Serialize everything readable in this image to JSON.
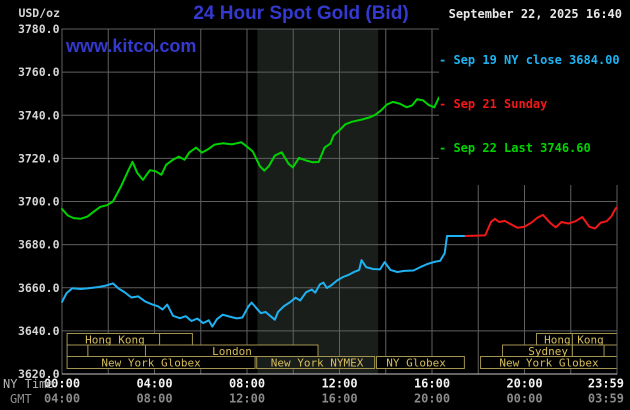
{
  "header": {
    "unit_label": "USD/oz",
    "title": "24 Hour Spot Gold (Bid)",
    "datetime": "September 22, 2025 16:40",
    "watermark": "www.kitco.com"
  },
  "legend": {
    "items": [
      {
        "label": "- Sep 19 NY close 3684.00",
        "color": "#1fb2f2"
      },
      {
        "label": "- Sep 21 Sunday",
        "color": "#f01818"
      },
      {
        "label": "- Sep 22 Last 3746.60",
        "color": "#00d400"
      }
    ]
  },
  "axes": {
    "y": {
      "ticks": [
        {
          "value": 3780,
          "label": "3780.0"
        },
        {
          "value": 3760,
          "label": "3760.0"
        },
        {
          "value": 3740,
          "label": "3740.0"
        },
        {
          "value": 3720,
          "label": "3720.0"
        },
        {
          "value": 3700,
          "label": "3700.0"
        },
        {
          "value": 3680,
          "label": "3680.0"
        },
        {
          "value": 3660,
          "label": "3660.0"
        },
        {
          "value": 3640,
          "label": "3640.0"
        },
        {
          "value": 3620,
          "label": "3620.0"
        }
      ]
    },
    "time_rows": [
      {
        "label": "NY Time",
        "color": "#f2f2f2",
        "ticks": [
          {
            "hour": 0,
            "text": "00:00"
          },
          {
            "hour": 4,
            "text": "04:00"
          },
          {
            "hour": 8,
            "text": "08:00"
          },
          {
            "hour": 12,
            "text": "12:00"
          },
          {
            "hour": 16,
            "text": "16:00"
          },
          {
            "hour": 20,
            "text": "20:00"
          },
          {
            "hour": 23.98,
            "text": "23:59",
            "align": "end"
          }
        ]
      },
      {
        "label": "GMT",
        "color": "#8a8a8a",
        "ticks": [
          {
            "hour": 0,
            "text": "04:00"
          },
          {
            "hour": 4,
            "text": "08:00"
          },
          {
            "hour": 8,
            "text": "12:00"
          },
          {
            "hour": 12,
            "text": "16:00"
          },
          {
            "hour": 16,
            "text": "20:00"
          },
          {
            "hour": 20,
            "text": "00:00"
          },
          {
            "hour": 23.98,
            "text": "03:59",
            "align": "end"
          }
        ]
      }
    ]
  },
  "sessions": {
    "border_color": "#a3954f",
    "text_color": "#d6bd5a",
    "rows": [
      {
        "boxes": [
          {
            "from": 0.22,
            "to": 4.22
          },
          {
            "from": 4.22,
            "to": 5.64
          },
          {
            "from": 20.52,
            "to": 22.07
          },
          {
            "from": 22.07,
            "to": 24
          }
        ],
        "labels": [
          {
            "hour": 2.29,
            "text": "Hong Kong"
          },
          {
            "hour": 22.14,
            "text": "Hong Kong"
          }
        ]
      },
      {
        "boxes": [
          {
            "from": 0.22,
            "to": 1.12
          },
          {
            "from": 1.12,
            "to": 3.61
          },
          {
            "from": 3.61,
            "to": 11.07
          },
          {
            "from": 19.05,
            "to": 22.07
          },
          {
            "from": 22.07,
            "to": 23.44
          }
        ],
        "labels": [
          {
            "hour": 7.35,
            "text": "London"
          },
          {
            "hour": 21.02,
            "text": "Sydney"
          }
        ]
      },
      {
        "boxes": [
          {
            "from": 0.22,
            "to": 8.35
          },
          {
            "from": 8.42,
            "to": 13.52,
            "shaded": true
          },
          {
            "from": 13.6,
            "to": 17.4
          },
          {
            "from": 18.1,
            "to": 24
          }
        ],
        "labels": [
          {
            "hour": 3.85,
            "text": "New York Globex"
          },
          {
            "hour": 11.03,
            "text": "New York NYMEX"
          },
          {
            "hour": 15.31,
            "text": "NY Globex"
          },
          {
            "hour": 21.06,
            "text": "New York Globex"
          }
        ]
      }
    ]
  },
  "chart_data": {
    "type": "line",
    "title": "24 Hour Spot Gold (Bid)",
    "xlabel": "NY Time (hours)",
    "ylabel": "USD/oz",
    "x_range": [
      0,
      24
    ],
    "y_range": [
      3620,
      3780
    ],
    "grid": {
      "x_step_hours": 2,
      "y_step": 20,
      "color": "#5f5f5f"
    },
    "band": {
      "from": 8.45,
      "to": 13.67,
      "color": "#1a1e1a"
    },
    "series": [
      {
        "name": "Sep 19 NY close 3684.00",
        "color": "#1fb2f2",
        "points": [
          [
            0,
            3653.5
          ],
          [
            0.2,
            3657.5
          ],
          [
            0.45,
            3659.8
          ],
          [
            0.8,
            3659.4
          ],
          [
            1.1,
            3659.7
          ],
          [
            1.5,
            3660.2
          ],
          [
            1.9,
            3661
          ],
          [
            2.2,
            3662
          ],
          [
            2.45,
            3659.6
          ],
          [
            2.7,
            3658
          ],
          [
            3.0,
            3655.5
          ],
          [
            3.3,
            3656
          ],
          [
            3.6,
            3653.6
          ],
          [
            3.9,
            3652.3
          ],
          [
            4.15,
            3651.4
          ],
          [
            4.35,
            3649.9
          ],
          [
            4.55,
            3652.2
          ],
          [
            4.8,
            3647
          ],
          [
            5.1,
            3645.9
          ],
          [
            5.35,
            3646.8
          ],
          [
            5.6,
            3644.6
          ],
          [
            5.85,
            3645.7
          ],
          [
            6.1,
            3643.6
          ],
          [
            6.35,
            3644.9
          ],
          [
            6.5,
            3642
          ],
          [
            6.7,
            3645.4
          ],
          [
            6.95,
            3647.5
          ],
          [
            7.25,
            3646.6
          ],
          [
            7.55,
            3645.8
          ],
          [
            7.8,
            3646.2
          ],
          [
            8.05,
            3651.2
          ],
          [
            8.2,
            3653.1
          ],
          [
            8.45,
            3650
          ],
          [
            8.6,
            3648.2
          ],
          [
            8.8,
            3648.8
          ],
          [
            9.0,
            3647
          ],
          [
            9.2,
            3645.2
          ],
          [
            9.35,
            3648.9
          ],
          [
            9.6,
            3651.5
          ],
          [
            9.85,
            3653.2
          ],
          [
            10.1,
            3655.4
          ],
          [
            10.3,
            3654.1
          ],
          [
            10.55,
            3657.9
          ],
          [
            10.8,
            3659.2
          ],
          [
            10.95,
            3657.7
          ],
          [
            11.15,
            3661.5
          ],
          [
            11.3,
            3662.4
          ],
          [
            11.45,
            3659.9
          ],
          [
            11.65,
            3661.2
          ],
          [
            11.9,
            3663.4
          ],
          [
            12.15,
            3665
          ],
          [
            12.4,
            3666
          ],
          [
            12.65,
            3667.4
          ],
          [
            12.85,
            3668.3
          ],
          [
            12.95,
            3672.8
          ],
          [
            13.15,
            3669.6
          ],
          [
            13.45,
            3668.7
          ],
          [
            13.75,
            3668.5
          ],
          [
            13.95,
            3671.9
          ],
          [
            14.2,
            3668.3
          ],
          [
            14.5,
            3667.3
          ],
          [
            14.8,
            3667.8
          ],
          [
            15.2,
            3668
          ],
          [
            15.5,
            3669.6
          ],
          [
            15.8,
            3671
          ],
          [
            16.1,
            3672
          ],
          [
            16.35,
            3672.5
          ],
          [
            16.55,
            3676
          ],
          [
            16.65,
            3684
          ],
          [
            17.45,
            3684
          ]
        ]
      },
      {
        "name": "Sep 21 Sunday",
        "color": "#f01818",
        "points": [
          [
            17.45,
            3684
          ],
          [
            18.3,
            3684.3
          ],
          [
            18.55,
            3690.5
          ],
          [
            18.72,
            3692
          ],
          [
            18.9,
            3690.5
          ],
          [
            19.15,
            3691
          ],
          [
            19.45,
            3689.2
          ],
          [
            19.7,
            3687.8
          ],
          [
            20.0,
            3688.3
          ],
          [
            20.3,
            3690.2
          ],
          [
            20.55,
            3692.4
          ],
          [
            20.8,
            3693.8
          ],
          [
            21.1,
            3690.2
          ],
          [
            21.35,
            3688
          ],
          [
            21.6,
            3690.5
          ],
          [
            21.9,
            3689.8
          ],
          [
            22.2,
            3690.8
          ],
          [
            22.5,
            3692.8
          ],
          [
            22.8,
            3688.3
          ],
          [
            23.05,
            3687.5
          ],
          [
            23.3,
            3690.2
          ],
          [
            23.55,
            3690.8
          ],
          [
            23.75,
            3693
          ],
          [
            23.9,
            3696
          ],
          [
            23.98,
            3697.2
          ]
        ]
      },
      {
        "name": "Sep 22 Last 3746.60",
        "color": "#00d400",
        "points": [
          [
            0,
            3696.5
          ],
          [
            0.25,
            3693.5
          ],
          [
            0.5,
            3692.3
          ],
          [
            0.8,
            3692
          ],
          [
            1.1,
            3693
          ],
          [
            1.4,
            3695.5
          ],
          [
            1.65,
            3697.5
          ],
          [
            1.95,
            3698.3
          ],
          [
            2.2,
            3700
          ],
          [
            2.55,
            3707
          ],
          [
            2.85,
            3714
          ],
          [
            3.05,
            3718.4
          ],
          [
            3.25,
            3713.3
          ],
          [
            3.5,
            3710
          ],
          [
            3.8,
            3714.5
          ],
          [
            4.05,
            3714
          ],
          [
            4.3,
            3712.4
          ],
          [
            4.5,
            3717
          ],
          [
            4.8,
            3719.4
          ],
          [
            5.05,
            3720.8
          ],
          [
            5.3,
            3719.4
          ],
          [
            5.5,
            3722.7
          ],
          [
            5.8,
            3725
          ],
          [
            6.05,
            3722.7
          ],
          [
            6.3,
            3724.1
          ],
          [
            6.6,
            3726.4
          ],
          [
            6.95,
            3727
          ],
          [
            7.35,
            3726.5
          ],
          [
            7.75,
            3727.5
          ],
          [
            8.05,
            3725
          ],
          [
            8.25,
            3723.2
          ],
          [
            8.55,
            3716.5
          ],
          [
            8.75,
            3714.3
          ],
          [
            8.95,
            3716.5
          ],
          [
            9.2,
            3721.3
          ],
          [
            9.5,
            3722.8
          ],
          [
            9.8,
            3717.5
          ],
          [
            9.98,
            3715.8
          ],
          [
            10.25,
            3720.2
          ],
          [
            10.55,
            3719
          ],
          [
            10.85,
            3718.2
          ],
          [
            11.1,
            3718.3
          ],
          [
            11.35,
            3725
          ],
          [
            11.6,
            3726.8
          ],
          [
            11.75,
            3730.7
          ],
          [
            12.0,
            3733
          ],
          [
            12.25,
            3735.8
          ],
          [
            12.55,
            3737
          ],
          [
            12.95,
            3738
          ],
          [
            13.3,
            3739
          ],
          [
            13.55,
            3740.2
          ],
          [
            13.8,
            3742.3
          ],
          [
            14.05,
            3745
          ],
          [
            14.3,
            3746.2
          ],
          [
            14.6,
            3745.4
          ],
          [
            14.9,
            3743.7
          ],
          [
            15.15,
            3744.6
          ],
          [
            15.35,
            3747.4
          ],
          [
            15.6,
            3747
          ],
          [
            15.85,
            3744.8
          ],
          [
            16.1,
            3743.7
          ],
          [
            16.3,
            3748.2
          ],
          [
            16.55,
            3745.8
          ],
          [
            16.7,
            3746.6
          ]
        ]
      }
    ]
  }
}
